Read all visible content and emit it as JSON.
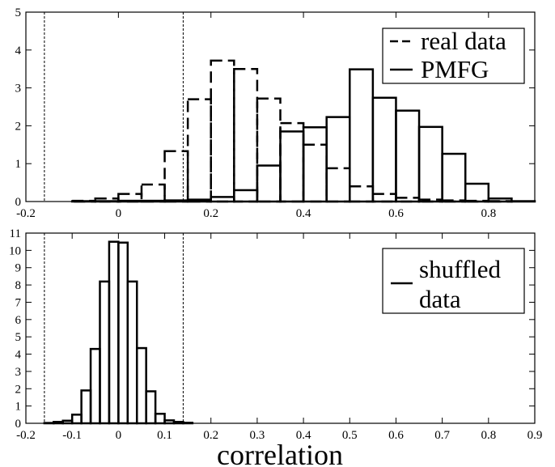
{
  "chart_data": [
    {
      "type": "bar",
      "panel": "top",
      "title": "",
      "xlabel": "",
      "ylabel": "",
      "xlim": [
        -0.2,
        0.9
      ],
      "ylim": [
        0,
        5
      ],
      "bin_width": 0.05,
      "x_ticks": [
        "-0.2",
        "0",
        "0.2",
        "0.4",
        "0.6",
        "0.8"
      ],
      "x_tick_values": [
        -0.2,
        0,
        0.2,
        0.4,
        0.6,
        0.8
      ],
      "y_ticks": [
        "0",
        "1",
        "2",
        "3",
        "4",
        "5"
      ],
      "y_tick_values": [
        0,
        1,
        2,
        3,
        4,
        5
      ],
      "vlines": [
        -0.16,
        0.14
      ],
      "legend_position": "top-right",
      "series": [
        {
          "name": "real data",
          "style": "dashed",
          "bins": [
            -0.1,
            -0.05,
            0,
            0.05,
            0.1,
            0.15,
            0.2,
            0.25,
            0.3,
            0.35,
            0.4,
            0.45,
            0.5,
            0.55,
            0.6,
            0.65,
            0.7,
            0.75,
            0.8,
            0.85
          ],
          "values": [
            0.02,
            0.08,
            0.2,
            0.45,
            1.33,
            2.7,
            3.72,
            3.5,
            2.72,
            2.07,
            1.5,
            0.88,
            0.4,
            0.2,
            0.1,
            0.05,
            0.03,
            0.02,
            0.01,
            0.0
          ]
        },
        {
          "name": "PMFG",
          "style": "solid",
          "bins": [
            -0.1,
            -0.05,
            0,
            0.05,
            0.1,
            0.15,
            0.2,
            0.25,
            0.3,
            0.35,
            0.4,
            0.45,
            0.5,
            0.55,
            0.6,
            0.65,
            0.7,
            0.75,
            0.8,
            0.85
          ],
          "values": [
            0.01,
            0.01,
            0.02,
            0.02,
            0.03,
            0.05,
            0.12,
            0.3,
            0.95,
            1.85,
            1.96,
            2.23,
            3.49,
            2.74,
            2.4,
            1.97,
            1.26,
            0.47,
            0.08,
            0.01
          ]
        }
      ]
    },
    {
      "type": "bar",
      "panel": "bottom",
      "title": "",
      "xlabel": "correlation",
      "ylabel": "",
      "xlim": [
        -0.2,
        0.9
      ],
      "ylim": [
        0,
        11
      ],
      "bin_width": 0.02,
      "x_ticks": [
        "-0.2",
        "-0.1",
        "0",
        "0.1",
        "0.2",
        "0.3",
        "0.4",
        "0.5",
        "0.6",
        "0.7",
        "0.8",
        "0.9"
      ],
      "x_tick_values": [
        -0.2,
        -0.1,
        0,
        0.1,
        0.2,
        0.3,
        0.4,
        0.5,
        0.6,
        0.7,
        0.8,
        0.9
      ],
      "y_ticks": [
        "0",
        "1",
        "2",
        "3",
        "4",
        "5",
        "6",
        "7",
        "8",
        "9",
        "10",
        "11"
      ],
      "y_tick_values": [
        0,
        1,
        2,
        3,
        4,
        5,
        6,
        7,
        8,
        9,
        10,
        11
      ],
      "vlines": [
        -0.16,
        0.14
      ],
      "legend_position": "top-right",
      "series": [
        {
          "name": "shuffled data",
          "name_lines": [
            "shuffled",
            "data"
          ],
          "style": "solid",
          "bins": [
            -0.16,
            -0.14,
            -0.12,
            -0.1,
            -0.08,
            -0.06,
            -0.04,
            -0.02,
            0,
            0.02,
            0.04,
            0.06,
            0.08,
            0.1,
            0.12,
            0.14
          ],
          "values": [
            0.02,
            0.08,
            0.15,
            0.5,
            1.9,
            4.3,
            8.2,
            10.5,
            10.45,
            8.2,
            4.35,
            1.85,
            0.55,
            0.17,
            0.08,
            0.03
          ]
        }
      ]
    }
  ]
}
